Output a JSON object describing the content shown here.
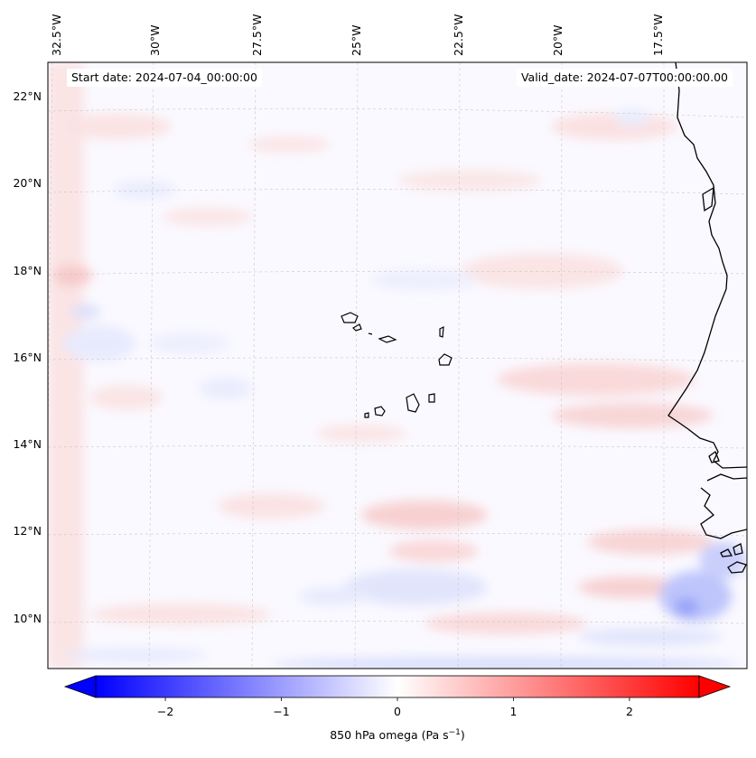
{
  "map": {
    "start_date": "Start date: 2024-07-04_00:00:00",
    "valid_date": "Valid_date: 2024-07-07T00:00:00.00",
    "lon_labels": [
      "32.5°W",
      "30°W",
      "27.5°W",
      "25°W",
      "22.5°W",
      "20°W",
      "17.5°W"
    ],
    "lat_labels": [
      "22°N",
      "20°N",
      "18°N",
      "16°N",
      "14°N",
      "12°N",
      "10°N"
    ],
    "lon_range": [
      -32.7,
      -15.5
    ],
    "lat_range": [
      8.9,
      22.7
    ]
  },
  "colorbar": {
    "label_main": "850 hPa omega (Pa s",
    "label_exp": "−1",
    "label_close": ")",
    "tick_labels": [
      "−2",
      "−1",
      "0",
      "1",
      "2"
    ],
    "tick_values": [
      -2,
      -1,
      0,
      1,
      2
    ],
    "vmin": -2.6,
    "vmax": 2.6,
    "low_color": "#0000ff",
    "mid_color": "#ffffff",
    "high_color": "#ff0000"
  },
  "colors": {
    "positive_field": "#ffc8c8",
    "negative_field": "#c8d0ff",
    "coastline": "#000000",
    "gridline": "#c8c8c8"
  }
}
